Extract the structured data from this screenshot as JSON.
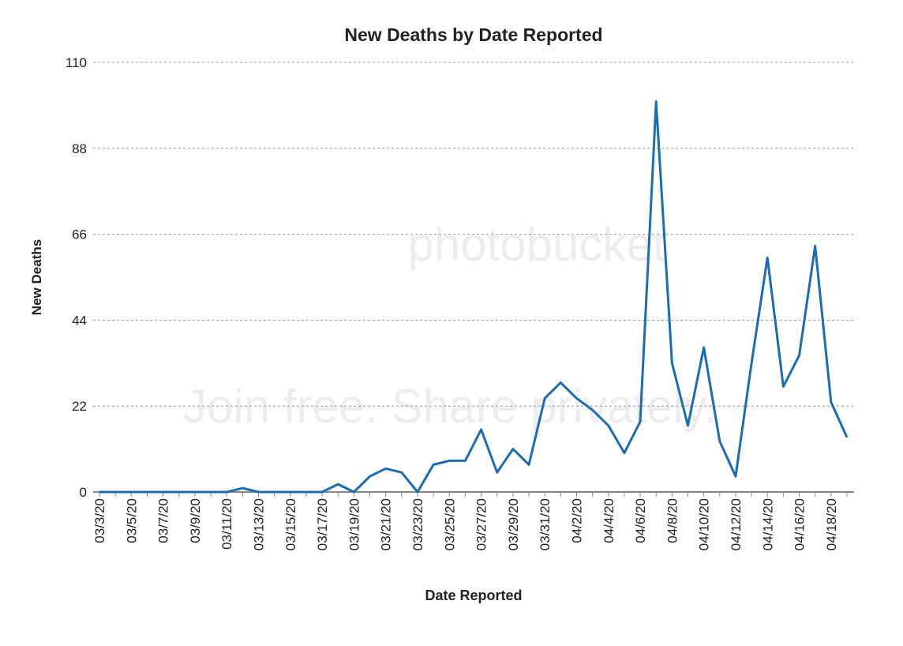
{
  "chart_data": {
    "type": "line",
    "title": "New Deaths by Date Reported",
    "x_label": "Date Reported",
    "y_label": "New Deaths",
    "watermark": [
      "photobucket",
      "Join free. Share privately."
    ],
    "categories": [
      "03/3/20",
      null,
      "03/5/20",
      null,
      "03/7/20",
      null,
      "03/9/20",
      null,
      "03/11/20",
      null,
      "03/13/20",
      null,
      "03/15/20",
      null,
      "03/17/20",
      null,
      "03/19/20",
      null,
      "03/21/20",
      null,
      "03/23/20",
      null,
      "03/25/20",
      null,
      "03/27/20",
      null,
      "03/29/20",
      null,
      "03/31/20",
      null,
      "04/2/20",
      null,
      "04/4/20",
      null,
      "04/6/20",
      null,
      "04/8/20",
      null,
      "04/10/20",
      null,
      "04/12/20",
      null,
      "04/14/20",
      null,
      "04/16/20",
      null,
      "04/18/20",
      null
    ],
    "series": [
      {
        "name": "New Deaths",
        "color": "#1b6db3",
        "values": [
          0,
          0,
          0,
          0,
          0,
          0,
          0,
          0,
          0,
          1,
          0,
          0,
          0,
          0,
          0,
          2,
          0,
          4,
          6,
          5,
          0,
          7,
          8,
          8,
          16,
          5,
          11,
          7,
          24,
          28,
          24,
          21,
          17,
          10,
          18,
          100,
          33,
          17,
          37,
          13,
          4,
          33,
          60,
          27,
          35,
          63,
          23,
          14
        ]
      }
    ],
    "ylim": [
      0,
      110
    ],
    "yticks": [
      0,
      22,
      44,
      66,
      88,
      110
    ],
    "grid": true
  }
}
